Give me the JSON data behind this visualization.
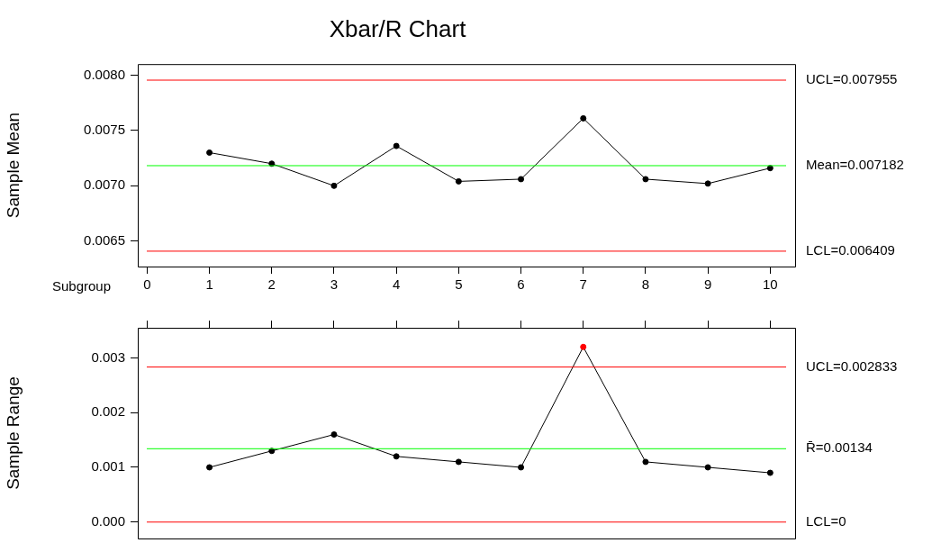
{
  "chart_data": [
    {
      "type": "line",
      "title": "Xbar/R Chart",
      "xlabel": "Subgroup",
      "ylabel": "Sample Mean",
      "x": [
        1,
        2,
        3,
        4,
        5,
        6,
        7,
        8,
        9,
        10
      ],
      "series": [
        {
          "color": "#000000",
          "colors": [
            "#000000",
            "#000000",
            "#000000",
            "#000000",
            "#000000",
            "#000000",
            "#000000",
            "#000000",
            "#000000",
            "#000000"
          ],
          "values": [
            0.0073,
            0.0072,
            0.007,
            0.00736,
            0.00704,
            0.00706,
            0.00761,
            0.00706,
            0.00702,
            0.00716
          ]
        }
      ],
      "xlim": [
        -0.15,
        10.4
      ],
      "xticks": [
        0,
        1,
        2,
        3,
        4,
        5,
        6,
        7,
        8,
        9,
        10
      ],
      "ylim": [
        0.00627,
        0.0081
      ],
      "yticks": [
        {
          "value": 0.0065,
          "label": "0.0065"
        },
        {
          "value": 0.007,
          "label": "0.0070"
        },
        {
          "value": 0.0075,
          "label": "0.0075"
        },
        {
          "value": 0.008,
          "label": "0.0080"
        }
      ],
      "ref_lines": [
        {
          "axis": "y",
          "value": 0.007955,
          "label": "UCL=0.007955",
          "color": "#ff0000"
        },
        {
          "axis": "y",
          "value": 0.007182,
          "label": "Mean=0.007182",
          "color": "#00ff00"
        },
        {
          "axis": "y",
          "value": 0.006409,
          "label": "LCL=0.006409",
          "color": "#ff0000"
        }
      ],
      "grid": false,
      "legend": false,
      "marker": "circle",
      "line_style": "solid"
    },
    {
      "type": "line",
      "ylabel": "Sample Range",
      "x": [
        1,
        2,
        3,
        4,
        5,
        6,
        7,
        8,
        9,
        10
      ],
      "series": [
        {
          "color": "#000000",
          "colors": [
            "#000000",
            "#000000",
            "#000000",
            "#000000",
            "#000000",
            "#000000",
            "#ff0000",
            "#000000",
            "#000000",
            "#000000"
          ],
          "values": [
            0.001,
            0.0013,
            0.0016,
            0.0012,
            0.0011,
            0.001,
            0.0032,
            0.0011,
            0.001,
            0.0009
          ]
        }
      ],
      "xlim": [
        -0.15,
        10.4
      ],
      "xticks": [
        {
          "value": 0,
          "label": null
        },
        {
          "value": 1,
          "label": null
        },
        {
          "value": 2,
          "label": null
        },
        {
          "value": 3,
          "label": null
        },
        {
          "value": 4,
          "label": null
        },
        {
          "value": 5,
          "label": null
        },
        {
          "value": 6,
          "label": null
        },
        {
          "value": 7,
          "label": null
        },
        {
          "value": 8,
          "label": null
        },
        {
          "value": 9,
          "label": null
        },
        {
          "value": 10,
          "label": null
        }
      ],
      "ylim": [
        -0.0003,
        0.00355
      ],
      "yticks": [
        {
          "value": 0,
          "label": "0.000"
        },
        {
          "value": 0.001,
          "label": "0.001"
        },
        {
          "value": 0.002,
          "label": "0.002"
        },
        {
          "value": 0.003,
          "label": "0.003"
        }
      ],
      "ref_lines": [
        {
          "axis": "y",
          "value": 0.002833,
          "label": "UCL=0.002833",
          "color": "#ff0000"
        },
        {
          "axis": "y",
          "value": 0.00134,
          "label": "R̄=0.00134",
          "color": "#00ff00"
        },
        {
          "axis": "y",
          "value": 0,
          "label": "LCL=0",
          "color": "#ff0000"
        }
      ],
      "tick_labels": "y",
      "grid": false,
      "legend": false,
      "marker": "circle",
      "line_style": "solid"
    }
  ]
}
